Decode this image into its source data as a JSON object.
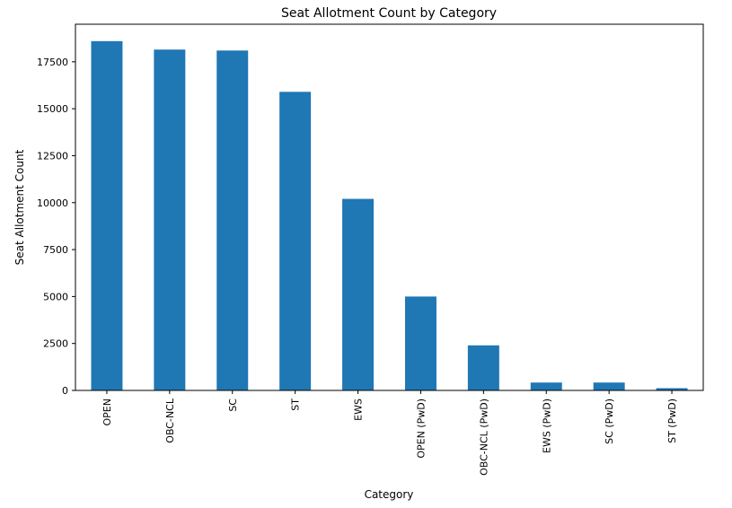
{
  "chart_data": {
    "type": "bar",
    "title": "Seat Allotment Count by Category",
    "xlabel": "Category",
    "ylabel": "Seat Allotment Count",
    "categories": [
      "OPEN",
      "OBC-NCL",
      "SC",
      "ST",
      "EWS",
      "OPEN (PwD)",
      "OBC-NCL (PwD)",
      "EWS (PwD)",
      "SC (PwD)",
      "ST (PwD)"
    ],
    "values": [
      18600,
      18150,
      18100,
      15900,
      10200,
      5000,
      2400,
      420,
      420,
      120
    ],
    "ylim": [
      0,
      19500
    ],
    "yticks": [
      0,
      2500,
      5000,
      7500,
      10000,
      12500,
      15000,
      17500
    ],
    "ytick_labels": [
      "0",
      "2500",
      "5000",
      "7500",
      "10000",
      "12500",
      "15000",
      "17500"
    ],
    "bar_color": "#1f77b4",
    "grid": false,
    "legend": "none"
  }
}
